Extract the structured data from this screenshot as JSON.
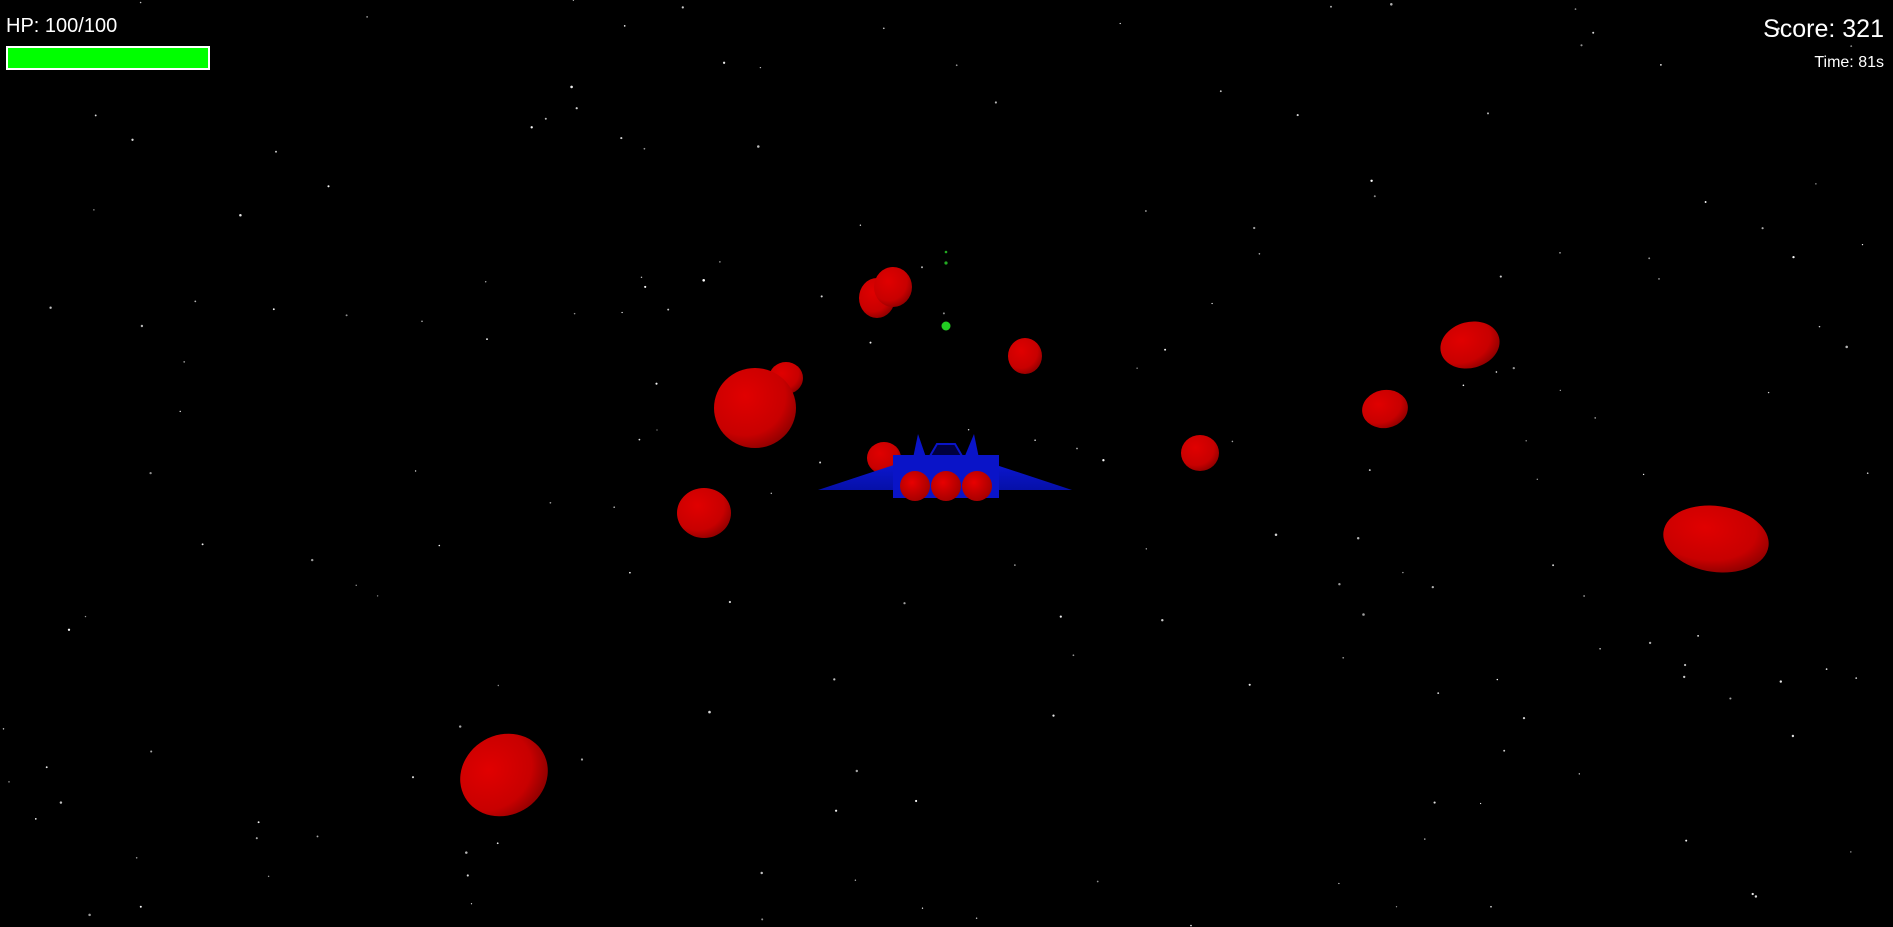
{
  "hud": {
    "hp_text": "HP: 100/100",
    "hp_value": 100,
    "hp_max": 100,
    "hp_fraction": 1.0,
    "score_text": "Score: 321",
    "time_text": "Time: 81s"
  },
  "colors": {
    "background": "#000000",
    "hp_bar_fill": "#00ff00",
    "hp_bar_border": "#ffffff",
    "hud_text": "#ffffff",
    "ship_body": "#0a14c8",
    "ship_engines": "#d40000",
    "asteroid": "#cc0000",
    "projectile": "#22cc22",
    "star": "#ffffff"
  },
  "entities": {
    "player_ship": "blue-spaceship",
    "asteroids": "red-asteroid",
    "projectiles": "green-laser-bolt",
    "stars": "starfield"
  }
}
